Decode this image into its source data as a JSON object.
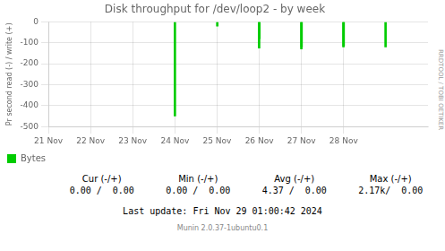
{
  "chart_data": {
    "type": "bar",
    "title": "Disk throughput for /dev/loop2 - by week",
    "ylabel": "Pr second read (-) / write (+)",
    "x": [
      1732320000,
      1732406800,
      1732492500,
      1732493000,
      1732579000,
      1732579500,
      1732665200,
      1732665700,
      1732751500
    ],
    "series": [
      {
        "name": "Bytes",
        "color": "#00cc00",
        "values": [
          -450,
          -20,
          -125,
          -80,
          -130,
          -120,
          -120,
          -115,
          -120
        ]
      }
    ],
    "xlim": [
      1732060800,
      1732838400
    ],
    "xticks": [
      {
        "value": 1732060800,
        "label": "21 Nov"
      },
      {
        "value": 1732147200,
        "label": "22 Nov"
      },
      {
        "value": 1732233600,
        "label": "23 Nov"
      },
      {
        "value": 1732320000,
        "label": "24 Nov"
      },
      {
        "value": 1732406400,
        "label": "25 Nov"
      },
      {
        "value": 1732492800,
        "label": "26 Nov"
      },
      {
        "value": 1732579200,
        "label": "27 Nov"
      },
      {
        "value": 1732665600,
        "label": "28 Nov"
      }
    ],
    "ylim": [
      -500,
      0
    ],
    "yticks": [
      -500,
      -400,
      -300,
      -200,
      -100,
      0
    ],
    "grid": true,
    "legend": "lower left",
    "annotations": [
      "RRDTOOL / TOBI OETIKER",
      "Last update: Fri Nov 29 01:00:42 2024",
      "Munin 2.0.37-1ubuntu0.1"
    ],
    "table": {
      "headers": [
        "Cur (-/+)",
        "Min (-/+)",
        "Avg (-/+)",
        "Max (-/+)"
      ],
      "values": [
        "0.00 /  0.00",
        "0.00 /  0.00",
        "4.37 /  0.00",
        "2.17k/  0.00"
      ]
    }
  }
}
